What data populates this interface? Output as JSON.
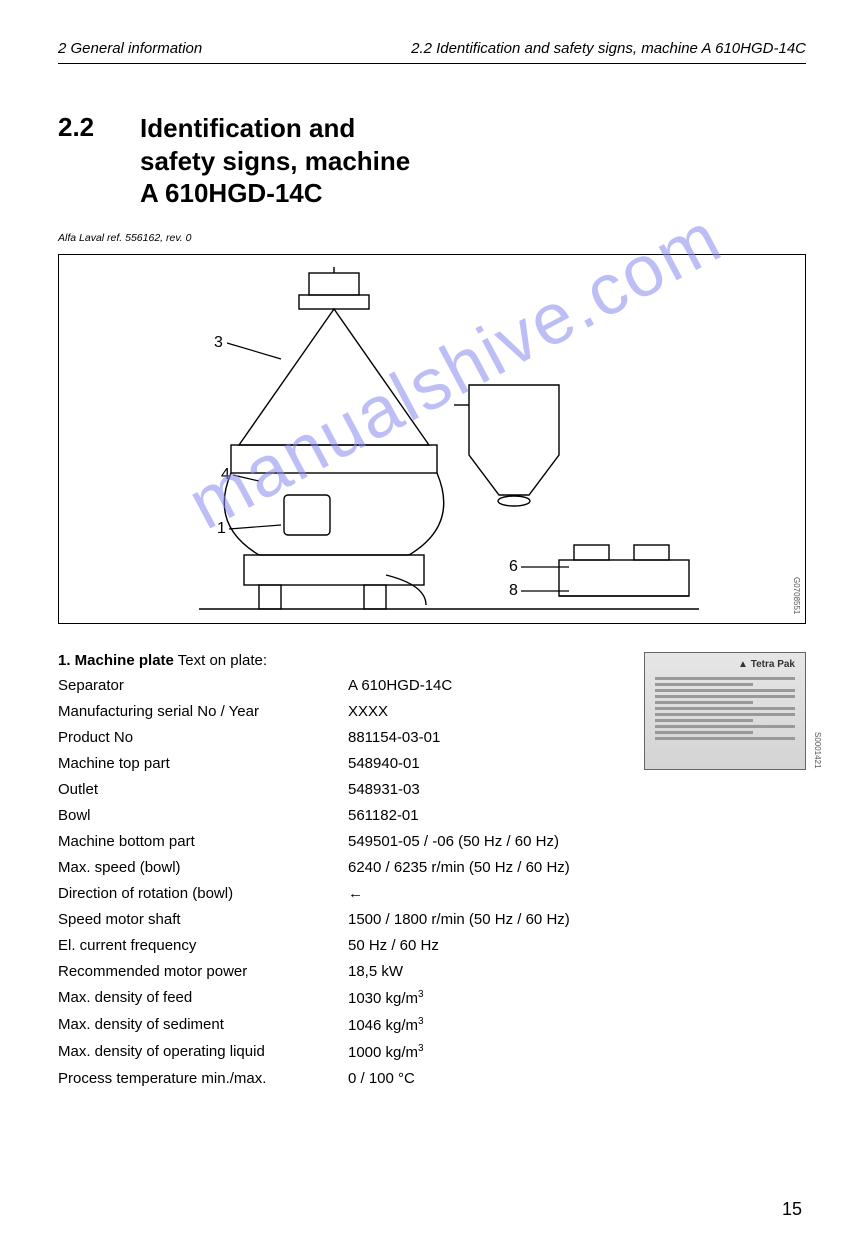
{
  "header": {
    "left": "2  General information",
    "right": "2.2  Identification and safety signs, machine A  610HGD-14C"
  },
  "section": {
    "number": "2.2",
    "title_line1": "Identification and",
    "title_line2": "safety signs, machine",
    "title_line3": "A  610HGD-14C"
  },
  "ref_note": "Alfa Laval ref. 556162, rev. 0",
  "figure": {
    "callouts": {
      "c1": "1",
      "c3": "3",
      "c4": "4",
      "c6": "6",
      "c8": "8"
    },
    "side_code": "G0708551",
    "colors": {
      "stroke": "#000000",
      "fill": "#ffffff"
    }
  },
  "plate": {
    "heading_bold": "1. Machine plate",
    "heading_rest": " Text on plate:",
    "brand": "Tetra Pak",
    "side_code": "S0001421",
    "rows": [
      {
        "label": "Separator",
        "value": "A 610HGD-14C"
      },
      {
        "label": "Manufacturing serial No / Year",
        "value": "XXXX"
      },
      {
        "label": "Product No",
        "value": "881154-03-01"
      },
      {
        "label": "Machine top part",
        "value": "548940-01"
      },
      {
        "label": "Outlet",
        "value": "548931-03"
      },
      {
        "label": "Bowl",
        "value": "561182-01"
      },
      {
        "label": "Machine bottom part",
        "value": "549501-05 / -06 (50 Hz / 60 Hz)"
      },
      {
        "label": "Max. speed (bowl)",
        "value": "6240 / 6235 r/min (50 Hz / 60 Hz)"
      },
      {
        "label": "Direction of rotation (bowl)",
        "value": "←"
      },
      {
        "label": "Speed motor shaft",
        "value": "1500 / 1800 r/min (50 Hz / 60 Hz)"
      },
      {
        "label": "El. current frequency",
        "value": "50 Hz / 60 Hz"
      },
      {
        "label": "Recommended motor power",
        "value": "18,5 kW"
      },
      {
        "label": "Max. density of feed",
        "value": "1030 kg/m",
        "sup": "3"
      },
      {
        "label": "Max. density of sediment",
        "value": "1046 kg/m",
        "sup": "3"
      },
      {
        "label": "Max. density of operating liquid",
        "value": "1000 kg/m",
        "sup": "3"
      },
      {
        "label": "Process temperature min./max.",
        "value": "0 / 100 °C"
      }
    ]
  },
  "page_number": "15",
  "watermark": "manualshive.com"
}
